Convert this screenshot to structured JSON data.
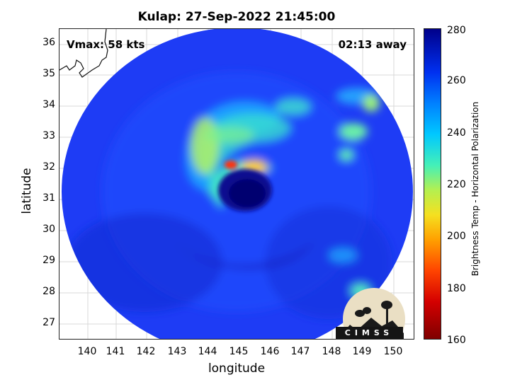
{
  "title": "Kulap: 27-Sep-2022 21:45:00",
  "overlay": {
    "vmax": "Vmax: 58 kts",
    "time_away": "02:13 away"
  },
  "axes": {
    "xlabel": "longitude",
    "ylabel": "latitude",
    "xticks": [
      "140",
      "141",
      "142",
      "143",
      "144",
      "145",
      "146",
      "147",
      "148",
      "149",
      "150"
    ],
    "yticks": [
      "36",
      "35",
      "34",
      "33",
      "32",
      "31",
      "30",
      "29",
      "28",
      "27"
    ]
  },
  "colorbar": {
    "label": "Brightness Temp - Horizontal Polarization",
    "ticks": [
      "280",
      "260",
      "240",
      "220",
      "200",
      "180",
      "160"
    ],
    "min": 160,
    "max": 280
  },
  "logo": {
    "text": "CIMSS"
  },
  "colors": {
    "background_field": "#1e3cf5",
    "eye": "#0a0a8c",
    "warm": "#ffe020",
    "hot": "#ff2010"
  },
  "storm": {
    "name": "Kulap",
    "center_lon": 144.9,
    "center_lat": 31.4
  }
}
